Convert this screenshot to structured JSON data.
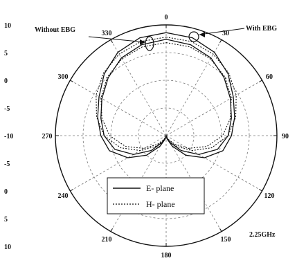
{
  "chart_data": {
    "type": "polar-line",
    "title": "",
    "frequency_label": "2.25GHz",
    "angle_ticks": [
      "0",
      "30",
      "60",
      "90",
      "120",
      "150",
      "180",
      "210",
      "240",
      "270",
      "300",
      "330"
    ],
    "radial_range": [
      -10,
      10
    ],
    "radial_ticks_left": [
      "10",
      "5",
      "0",
      "-5",
      "-10",
      "-5",
      "0",
      "5",
      "10"
    ],
    "grid": true,
    "legend": {
      "placement": "bottom-center",
      "entries": [
        "E- plane",
        "H- plane"
      ]
    },
    "annotations": [
      "Without EBG",
      "With EBG"
    ],
    "series": [
      {
        "name": "E- plane",
        "group": "With EBG",
        "style": "solid",
        "theta": [
          0,
          15,
          30,
          45,
          60,
          75,
          90,
          105,
          120,
          135,
          150,
          165,
          180,
          195,
          210,
          225,
          240,
          255,
          270,
          285,
          300,
          315,
          330,
          345
        ],
        "r": [
          8.6,
          8.3,
          7.4,
          5.8,
          4.0,
          2.8,
          1.8,
          0.6,
          -2.0,
          -5.0,
          -7.8,
          -9.4,
          -10.0,
          -9.4,
          -7.8,
          -5.0,
          -2.0,
          0.6,
          1.8,
          2.8,
          4.0,
          5.8,
          7.4,
          8.3
        ]
      },
      {
        "name": "E- plane",
        "group": "Without EBG",
        "style": "solid",
        "theta": [
          0,
          15,
          30,
          45,
          60,
          75,
          90,
          105,
          120,
          135,
          150,
          165,
          180,
          195,
          210,
          225,
          240,
          255,
          270,
          285,
          300,
          315,
          330,
          345
        ],
        "r": [
          7.4,
          7.0,
          6.2,
          4.8,
          3.4,
          2.2,
          1.2,
          -0.4,
          -3.2,
          -6.2,
          -8.6,
          -9.6,
          -10.0,
          -9.6,
          -8.6,
          -6.2,
          -3.2,
          -0.4,
          1.2,
          2.2,
          3.4,
          4.8,
          6.2,
          7.0
        ]
      },
      {
        "name": "H- plane",
        "group": "With EBG",
        "style": "dotted",
        "theta": [
          0,
          15,
          30,
          45,
          60,
          75,
          90,
          105,
          120,
          135,
          150,
          165,
          180,
          195,
          210,
          225,
          240,
          255,
          270,
          285,
          300,
          315,
          330,
          345
        ],
        "r": [
          7.8,
          7.6,
          7.0,
          6.0,
          4.6,
          3.0,
          1.2,
          -1.5,
          -4.6,
          -7.2,
          -8.8,
          -9.6,
          -10.0,
          -9.6,
          -8.8,
          -7.2,
          -4.6,
          -1.5,
          1.2,
          3.0,
          4.6,
          6.0,
          7.0,
          7.6
        ]
      },
      {
        "name": "H- plane",
        "group": "Without EBG",
        "style": "dotted",
        "theta": [
          0,
          15,
          30,
          45,
          60,
          75,
          90,
          105,
          120,
          135,
          150,
          165,
          180,
          195,
          210,
          225,
          240,
          255,
          270,
          285,
          300,
          315,
          330,
          345
        ],
        "r": [
          6.8,
          6.6,
          6.0,
          5.0,
          3.6,
          2.0,
          0.2,
          -2.4,
          -5.4,
          -7.8,
          -9.2,
          -9.8,
          -10.0,
          -9.8,
          -9.2,
          -7.8,
          -5.4,
          -2.4,
          0.2,
          2.0,
          3.6,
          5.0,
          6.0,
          6.6
        ]
      }
    ]
  }
}
